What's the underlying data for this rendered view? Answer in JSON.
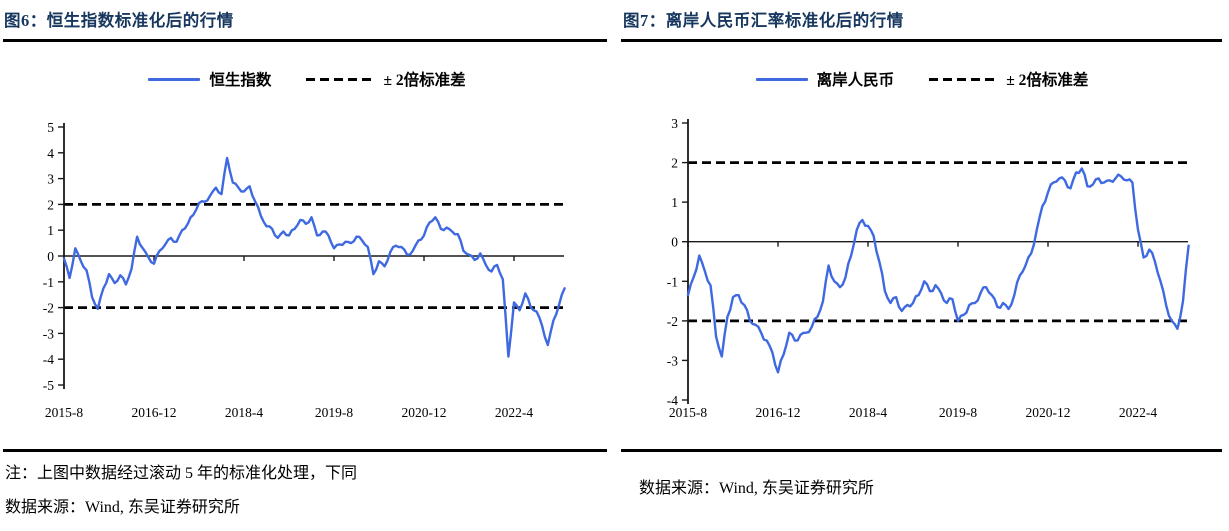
{
  "colors": {
    "series_blue": "#3F69E1",
    "band_black": "#000000",
    "title_navy": "#17375E"
  },
  "charts": [
    {
      "figure_label": "图6：恒生指数标准化后的行情",
      "legend": {
        "series": "恒生指数",
        "band": "± 2倍标准差"
      },
      "note_lines": [
        "注：上图中数据经过滚动 5 年的标准化处理，下同",
        "数据来源：Wind, 东吴证券研究所"
      ],
      "chart_data": {
        "type": "line",
        "title": "恒生指数标准化后的行情",
        "series_name": "恒生指数",
        "band_label": "± 2倍标准差",
        "band_lines": [
          2,
          -2
        ],
        "ylim": [
          -5,
          5
        ],
        "y_ticks": [
          5,
          4,
          3,
          2,
          1,
          0,
          -1,
          -2,
          -3,
          -4,
          -5
        ],
        "x_start": "2015-8",
        "x_end": "2023-1",
        "x_tick_labels": [
          "2015-8",
          "2016-12",
          "2018-4",
          "2019-8",
          "2020-12",
          "2022-4"
        ],
        "x_tick_month_indices": [
          0,
          16,
          32,
          48,
          64,
          80
        ],
        "values_monthly": [
          -0.1,
          -0.85,
          0.3,
          -0.2,
          -0.55,
          -1.6,
          -2.05,
          -1.25,
          -0.7,
          -1.05,
          -0.75,
          -1.1,
          -0.5,
          0.75,
          0.3,
          -0.05,
          -0.3,
          0.2,
          0.45,
          0.7,
          0.55,
          1.0,
          1.25,
          1.6,
          2.05,
          2.1,
          2.35,
          2.65,
          2.4,
          3.8,
          2.85,
          2.65,
          2.5,
          2.7,
          2.1,
          1.55,
          1.15,
          1.05,
          0.7,
          0.95,
          0.8,
          1.05,
          1.4,
          1.25,
          1.5,
          0.8,
          0.95,
          0.8,
          0.3,
          0.45,
          0.55,
          0.5,
          0.75,
          0.6,
          0.35,
          -0.7,
          -0.2,
          -0.4,
          0.15,
          0.4,
          0.35,
          0.05,
          0.2,
          0.6,
          0.8,
          1.3,
          1.5,
          1.05,
          1.1,
          0.95,
          0.85,
          0.2,
          0.05,
          -0.15,
          0.1,
          -0.35,
          -0.6,
          -0.35,
          -0.9,
          -3.9,
          -1.8,
          -2.1,
          -1.45,
          -2.0,
          -2.15,
          -2.7,
          -3.45,
          -2.5,
          -1.9,
          -1.25
        ]
      }
    },
    {
      "figure_label": "图7：离岸人民币汇率标准化后的行情",
      "legend": {
        "series": "离岸人民币",
        "band": "± 2倍标准差"
      },
      "note_lines": [
        "数据来源：Wind, 东吴证券研究所"
      ],
      "chart_data": {
        "type": "line",
        "title": "离岸人民币汇率标准化后的行情",
        "series_name": "离岸人民币",
        "band_label": "± 2倍标准差",
        "band_lines": [
          2,
          -2
        ],
        "ylim": [
          -4,
          3
        ],
        "y_ticks": [
          3,
          2,
          1,
          0,
          -1,
          -2,
          -3,
          -4
        ],
        "x_start": "2015-8",
        "x_end": "2023-1",
        "x_tick_labels": [
          "2015-8",
          "2016-12",
          "2018-4",
          "2019-8",
          "2020-12",
          "2022-4"
        ],
        "x_tick_month_indices": [
          0,
          16,
          32,
          48,
          64,
          80
        ],
        "values_monthly": [
          -1.35,
          -0.9,
          -0.35,
          -0.75,
          -1.1,
          -2.4,
          -2.9,
          -1.9,
          -1.4,
          -1.35,
          -1.6,
          -2.0,
          -2.1,
          -2.3,
          -2.5,
          -2.8,
          -3.3,
          -2.85,
          -2.3,
          -2.5,
          -2.35,
          -2.3,
          -2.15,
          -1.9,
          -1.5,
          -0.6,
          -1.0,
          -1.15,
          -0.9,
          -0.35,
          0.3,
          0.55,
          0.4,
          0.15,
          -0.5,
          -1.25,
          -1.55,
          -1.4,
          -1.75,
          -1.6,
          -1.55,
          -1.35,
          -1.0,
          -1.25,
          -1.1,
          -1.3,
          -1.55,
          -1.45,
          -2.0,
          -1.85,
          -1.6,
          -1.55,
          -1.3,
          -1.15,
          -1.35,
          -1.65,
          -1.55,
          -1.7,
          -1.35,
          -0.85,
          -0.6,
          -0.3,
          0.3,
          0.9,
          1.25,
          1.5,
          1.6,
          1.55,
          1.35,
          1.75,
          1.85,
          1.4,
          1.45,
          1.6,
          1.5,
          1.55,
          1.6,
          1.65,
          1.55,
          1.5,
          0.3,
          -0.4,
          -0.2,
          -0.5,
          -1.0,
          -1.6,
          -2.0,
          -2.2,
          -1.5,
          -0.1
        ]
      }
    }
  ]
}
